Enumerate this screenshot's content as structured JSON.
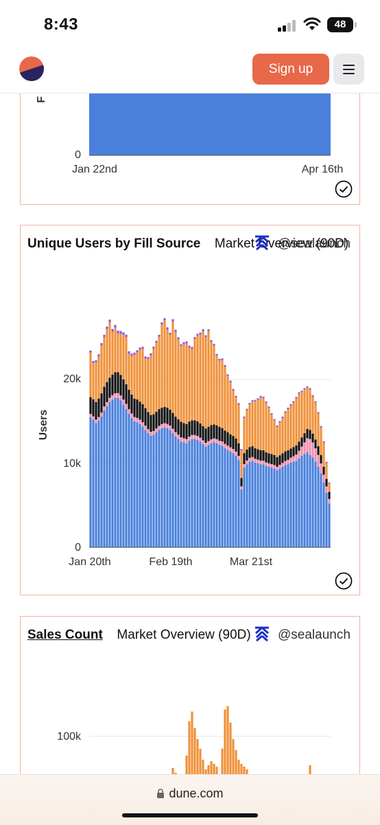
{
  "status_bar": {
    "time": "8:43",
    "battery": "48"
  },
  "header": {
    "signup_label": "Sign up",
    "menu_icon": "hamburger-menu-icon"
  },
  "chart_top": {
    "zero_label": "0",
    "x_labels": [
      "Jan 22nd",
      "Apr 16th"
    ],
    "bar_color": "#4a80db"
  },
  "chart_users": {
    "title_bold": "Unique Users by Fill Source",
    "title_rest": "Market Overview (90D)",
    "author": "@sealaunch",
    "ylabel": "Users",
    "y_ticks": [
      "0",
      "10k",
      "20k"
    ],
    "x_ticks": [
      "Jan 20th",
      "Feb 19th",
      "Mar 21st"
    ]
  },
  "chart_sales": {
    "title_link": "Sales Count",
    "title_rest": "Market Overview (90D)",
    "author": "@sealaunch",
    "y_tick": "100k"
  },
  "browser": {
    "url": "dune.com"
  },
  "chart_data": [
    {
      "type": "bar",
      "title": "Unique Users by Fill Source",
      "xlabel": "",
      "ylabel": "Users",
      "ylim": [
        0,
        30000
      ],
      "x_ticks": [
        "Jan 20th",
        "Feb 19th",
        "Mar 21st"
      ],
      "stacked": true,
      "colors": [
        "#4a80db",
        "#ee8fb0",
        "#111111",
        "#f0913a",
        "#8a5cd6"
      ],
      "series": [
        {
          "values": [
            15500,
            15200,
            14800,
            15100,
            15600,
            16300,
            16800,
            17300,
            17600,
            17800,
            17800,
            17500,
            17000,
            16500,
            15900,
            15400,
            15000,
            14900,
            14700,
            14400,
            14000,
            13600,
            13300,
            13400,
            13700,
            14000,
            14200,
            14300,
            14200,
            14000,
            13600,
            13200,
            12900,
            12600,
            12500,
            12400,
            12700,
            12900,
            12900,
            12800,
            12600,
            12300,
            12000,
            12200,
            12400,
            12500,
            12400,
            12200,
            12100,
            11800,
            11600,
            11400,
            11200,
            10900,
            10400,
            6900,
            9500,
            9900,
            10200,
            10300,
            10100,
            10000,
            9900,
            9900,
            9700,
            9600,
            9500,
            9400,
            9200,
            9400,
            9600,
            9800,
            9900,
            10100,
            10200,
            10300,
            10600,
            10900,
            11100,
            11300,
            11000,
            10700,
            10200,
            9600,
            8800,
            7700,
            6500,
            5200
          ]
        },
        {
          "values": [
            400,
            400,
            420,
            430,
            450,
            480,
            500,
            520,
            540,
            560,
            580,
            600,
            600,
            590,
            570,
            550,
            530,
            520,
            510,
            500,
            490,
            480,
            470,
            460,
            460,
            470,
            480,
            490,
            500,
            510,
            520,
            520,
            520,
            510,
            500,
            490,
            490,
            490,
            480,
            470,
            460,
            450,
            450,
            460,
            470,
            480,
            490,
            500,
            510,
            520,
            520,
            520,
            520,
            510,
            500,
            360,
            420,
            440,
            450,
            460,
            450,
            440,
            430,
            420,
            420,
            410,
            410,
            400,
            400,
            420,
            450,
            480,
            520,
            580,
            650,
            750,
            900,
            1100,
            1400,
            1700,
            1900,
            1800,
            1600,
            1400,
            1200,
            950,
            750,
            550
          ]
        },
        {
          "values": [
            2000,
            2050,
            2100,
            2200,
            2300,
            2350,
            2400,
            2400,
            2450,
            2500,
            2500,
            2450,
            2400,
            2350,
            2300,
            2250,
            2200,
            2200,
            2150,
            2150,
            2100,
            2050,
            2000,
            2000,
            2000,
            2000,
            1950,
            1950,
            1950,
            1900,
            1900,
            1850,
            1850,
            1850,
            1800,
            1800,
            1800,
            1750,
            1750,
            1750,
            1700,
            1700,
            1700,
            1700,
            1700,
            1650,
            1650,
            1650,
            1600,
            1600,
            1600,
            1550,
            1550,
            1550,
            1500,
            1000,
            1300,
            1300,
            1300,
            1300,
            1250,
            1250,
            1250,
            1250,
            1200,
            1200,
            1200,
            1200,
            1150,
            1150,
            1150,
            1150,
            1150,
            1100,
            1100,
            1100,
            1100,
            1100,
            1100,
            1100,
            1100,
            1050,
            1050,
            1050,
            1000,
            950,
            900,
            850
          ]
        },
        {
          "values": [
            5300,
            4300,
            4700,
            5000,
            5700,
            5900,
            6300,
            6600,
            5100,
            5300,
            4600,
            4900,
            5300,
            5600,
            4300,
            4600,
            5200,
            5600,
            6200,
            6600,
            5900,
            6300,
            7100,
            7800,
            8200,
            8600,
            9900,
            10300,
            9300,
            8900,
            10900,
            10100,
            9500,
            9000,
            9400,
            9600,
            8800,
            8500,
            9700,
            10200,
            10600,
            11300,
            10900,
            11400,
            9900,
            9400,
            8300,
            7900,
            8100,
            7600,
            6700,
            6200,
            5400,
            4900,
            4600,
            3300,
            4200,
            4700,
            5100,
            5300,
            5600,
            5900,
            6300,
            6200,
            5900,
            5400,
            4700,
            4100,
            3600,
            3900,
            4200,
            4600,
            4900,
            5100,
            5300,
            5600,
            5700,
            5400,
            5200,
            4900,
            4800,
            4400,
            4400,
            3900,
            3300,
            2900,
            1900,
            1000
          ]
        },
        {
          "values": [
            250,
            260,
            270,
            280,
            290,
            300,
            310,
            320,
            330,
            340,
            340,
            330,
            320,
            310,
            300,
            290,
            280,
            270,
            260,
            250,
            250,
            250,
            250,
            250,
            260,
            260,
            270,
            270,
            270,
            270,
            270,
            260,
            260,
            250,
            250,
            240,
            240,
            240,
            240,
            230,
            230,
            230,
            220,
            220,
            220,
            220,
            210,
            210,
            210,
            210,
            200,
            200,
            200,
            190,
            190,
            150,
            170,
            170,
            170,
            170,
            170,
            170,
            170,
            170,
            170,
            170,
            170,
            170,
            170,
            170,
            170,
            170,
            170,
            170,
            170,
            170,
            170,
            170,
            170,
            170,
            170,
            170,
            160,
            160,
            150,
            140,
            130,
            120
          ]
        }
      ]
    },
    {
      "type": "bar",
      "title": "Sales Count",
      "ylabel": "",
      "y_ticks": [
        "100k"
      ],
      "colors": [
        "#f0913a"
      ]
    }
  ]
}
